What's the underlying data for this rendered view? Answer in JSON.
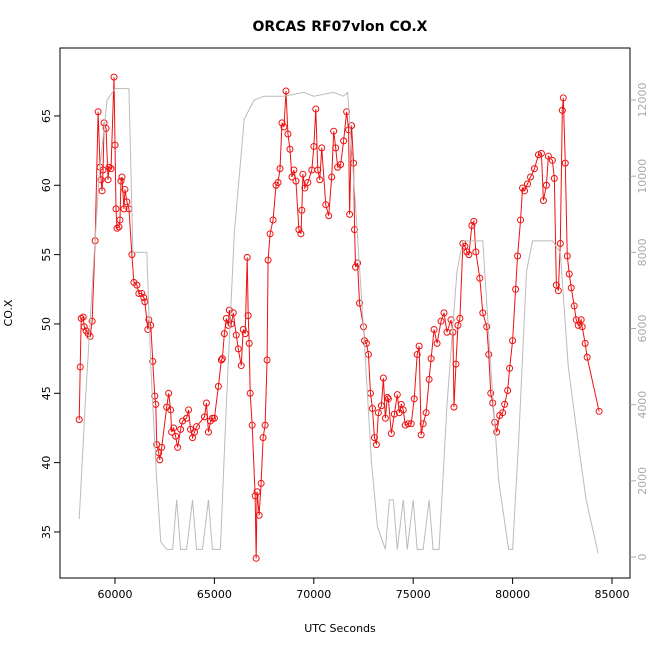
{
  "chart_data": {
    "type": "line",
    "title": "ORCAS RF07vlon CO.X",
    "xlabel": "UTC Seconds",
    "ylabel": "CO.X",
    "xlim": [
      57233,
      85905
    ],
    "ylim": [
      31.68,
      69.9
    ],
    "y2lim": [
      -551,
      13366
    ],
    "xticks": [
      60000,
      65000,
      70000,
      75000,
      80000,
      85000
    ],
    "yticks": [
      35,
      40,
      45,
      50,
      55,
      60,
      65
    ],
    "y2ticks": [
      0,
      2000,
      4000,
      6000,
      8000,
      10000,
      12000
    ],
    "series": [
      {
        "color": "#ee1111",
        "axis": "y",
        "markers": true,
        "x": [
          58200,
          58250,
          58300,
          58400,
          58450,
          58550,
          58650,
          58750,
          58850,
          59000,
          59150,
          59250,
          59300,
          59350,
          59400,
          59450,
          59550,
          59650,
          59700,
          59800,
          59950,
          60000,
          60050,
          60100,
          60200,
          60250,
          60300,
          60350,
          60450,
          60500,
          60600,
          60700,
          60850,
          60950,
          61100,
          61200,
          61350,
          61450,
          61500,
          61650,
          61700,
          61800,
          61900,
          62000,
          62050,
          62100,
          62200,
          62250,
          62350,
          62600,
          62700,
          62800,
          62850,
          62950,
          63050,
          63150,
          63300,
          63400,
          63600,
          63700,
          63800,
          63900,
          64000,
          64100,
          64500,
          64600,
          64700,
          64800,
          64900,
          65000,
          65200,
          65350,
          65400,
          65500,
          65600,
          65700,
          65750,
          65850,
          65950,
          66100,
          66200,
          66350,
          66450,
          66550,
          66650,
          66700,
          66750,
          66800,
          66900,
          67050,
          67100,
          67150,
          67250,
          67350,
          67450,
          67550,
          67650,
          67700,
          67800,
          67950,
          68100,
          68200,
          68300,
          68400,
          68500,
          68600,
          68700,
          68800,
          68900,
          69000,
          69100,
          69250,
          69350,
          69400,
          69450,
          69550,
          69700,
          69900,
          70000,
          70100,
          70200,
          70300,
          70400,
          70600,
          70750,
          70900,
          71000,
          71100,
          71200,
          71350,
          71500,
          71650,
          71750,
          71800,
          71900,
          72000,
          72050,
          72100,
          72200,
          72300,
          72500,
          72550,
          72650,
          72750,
          72850,
          72950,
          73050,
          73150,
          73250,
          73400,
          73500,
          73600,
          73700,
          73750,
          73900,
          74050,
          74200,
          74300,
          74400,
          74500,
          74600,
          74750,
          74900,
          75050,
          75200,
          75300,
          75400,
          75500,
          75650,
          75800,
          75900,
          76050,
          76200,
          76400,
          76550,
          76700,
          76900,
          77000,
          77050,
          77150,
          77250,
          77350,
          77500,
          77600,
          77700,
          77800,
          77950,
          78050,
          78150,
          78350,
          78500,
          78700,
          78800,
          78900,
          79000,
          79100,
          79200,
          79350,
          79500,
          79600,
          79750,
          79850,
          80000,
          80150,
          80250,
          80400,
          80500,
          80600,
          80750,
          80900,
          81100,
          81300,
          81450,
          81550,
          81700,
          81800,
          82000,
          82100,
          82200,
          82300,
          82400,
          82500,
          82550,
          82650,
          82750,
          82850,
          82950,
          83100,
          83200,
          83300,
          83450,
          83500,
          83650,
          83750,
          84350
        ],
        "values": [
          43.1,
          46.9,
          50.4,
          50.5,
          49.8,
          49.5,
          49.3,
          49.1,
          50.2,
          56,
          65.3,
          61.3,
          60.4,
          59.6,
          61.1,
          64.5,
          64.1,
          60.4,
          61.3,
          61.2,
          67.8,
          62.9,
          58.3,
          56.9,
          57.0,
          57.5,
          60.3,
          60.6,
          58.3,
          59.7,
          58.8,
          58.3,
          55,
          53.0,
          52.8,
          52.2,
          52.2,
          51.9,
          51.6,
          49.6,
          50.3,
          49.9,
          47.3,
          44.8,
          44.2,
          41.3,
          40.7,
          40.2,
          41.1,
          44.0,
          45.0,
          43.8,
          42.2,
          42.5,
          41.9,
          41.1,
          42.4,
          43.0,
          43.2,
          43.8,
          42.4,
          41.8,
          42.2,
          42.6,
          43.3,
          44.3,
          42.2,
          43.0,
          43.2,
          43.2,
          45.5,
          47.4,
          47.5,
          49.3,
          50.4,
          49.9,
          51.0,
          50.0,
          50.8,
          49.2,
          48.2,
          47.0,
          49.6,
          49.3,
          54.8,
          50.6,
          48.6,
          45.0,
          42.7,
          37.6,
          33.1,
          37.9,
          36.2,
          38.5,
          41.8,
          42.7,
          47.4,
          54.6,
          56.5,
          57.5,
          60.0,
          60.2,
          61.2,
          64.5,
          64.2,
          66.8,
          63.7,
          62.6,
          60.6,
          61.1,
          60.3,
          56.8,
          56.5,
          58.2,
          60.8,
          59.8,
          60.2,
          61.1,
          62.8,
          65.5,
          61.1,
          60.4,
          62.7,
          58.6,
          57.8,
          60.6,
          63.9,
          62.7,
          61.3,
          61.5,
          63.2,
          65.3,
          64.0,
          57.9,
          64.3,
          61.6,
          56.8,
          54.1,
          54.4,
          51.5,
          49.8,
          48.8,
          48.6,
          47.8,
          45.0,
          43.9,
          41.8,
          41.3,
          43.6,
          44.1,
          46.1,
          43.2,
          44.7,
          44.6,
          42.1,
          43.5,
          44.9,
          43.6,
          44.2,
          43.8,
          42.7,
          42.8,
          42.8,
          44.6,
          47.8,
          48.4,
          42.0,
          42.8,
          43.6,
          46.0,
          47.5,
          49.6,
          48.6,
          50.2,
          50.8,
          49.4,
          50.3,
          49.4,
          44.0,
          47.1,
          49.9,
          50.4,
          55.8,
          55.6,
          55.2,
          55.0,
          57.1,
          57.4,
          55.2,
          53.3,
          50.8,
          49.8,
          47.8,
          45.0,
          44.3,
          42.9,
          42.2,
          43.4,
          43.6,
          44.2,
          45.2,
          46.8,
          48.8,
          52.5,
          54.9,
          57.5,
          59.8,
          59.6,
          60.1,
          60.6,
          61.2,
          62.2,
          62.3,
          58.9,
          60.0,
          62.1,
          61.8,
          60.5,
          52.8,
          52.4,
          55.8,
          65.4,
          66.3,
          61.6,
          54.9,
          53.6,
          52.6,
          51.3,
          50.3,
          49.9,
          50.3,
          49.8,
          48.6,
          47.6,
          43.7
        ]
      },
      {
        "color": "#bbbbbb",
        "axis": "y2",
        "markers": false,
        "x": [
          58200,
          58500,
          58900,
          59200,
          59600,
          60000,
          60500,
          60700,
          60900,
          61600,
          61800,
          62100,
          62300,
          62600,
          62900,
          63100,
          63300,
          63600,
          63900,
          64100,
          64400,
          64700,
          64900,
          65300,
          65600,
          66000,
          66500,
          67000,
          67500,
          68000,
          68500,
          69500,
          70000,
          71000,
          71500,
          71700,
          72000,
          72500,
          72900,
          73200,
          73600,
          73800,
          74000,
          74200,
          74500,
          74700,
          75000,
          75200,
          75500,
          75800,
          76000,
          76300,
          76700,
          77200,
          77500,
          78000,
          78500,
          78900,
          79300,
          79800,
          80000,
          80300,
          80700,
          81000,
          81500,
          82000,
          82400,
          82800,
          83300,
          83700,
          84300
        ],
        "values": [
          1000,
          4000,
          7500,
          10000,
          12000,
          12300,
          12300,
          12300,
          8000,
          8000,
          5000,
          2000,
          400,
          200,
          200,
          1500,
          200,
          200,
          1500,
          200,
          200,
          1500,
          200,
          200,
          4000,
          8500,
          11500,
          12000,
          12100,
          12100,
          12100,
          12200,
          12100,
          12200,
          12100,
          12200,
          10000,
          6000,
          2500,
          800,
          200,
          1500,
          1500,
          200,
          1500,
          200,
          1500,
          200,
          200,
          1500,
          200,
          200,
          4000,
          7500,
          8300,
          8300,
          8300,
          5000,
          2000,
          200,
          200,
          3000,
          7500,
          8300,
          8300,
          8300,
          8000,
          5000,
          3000,
          1500,
          100
        ]
      }
    ]
  }
}
